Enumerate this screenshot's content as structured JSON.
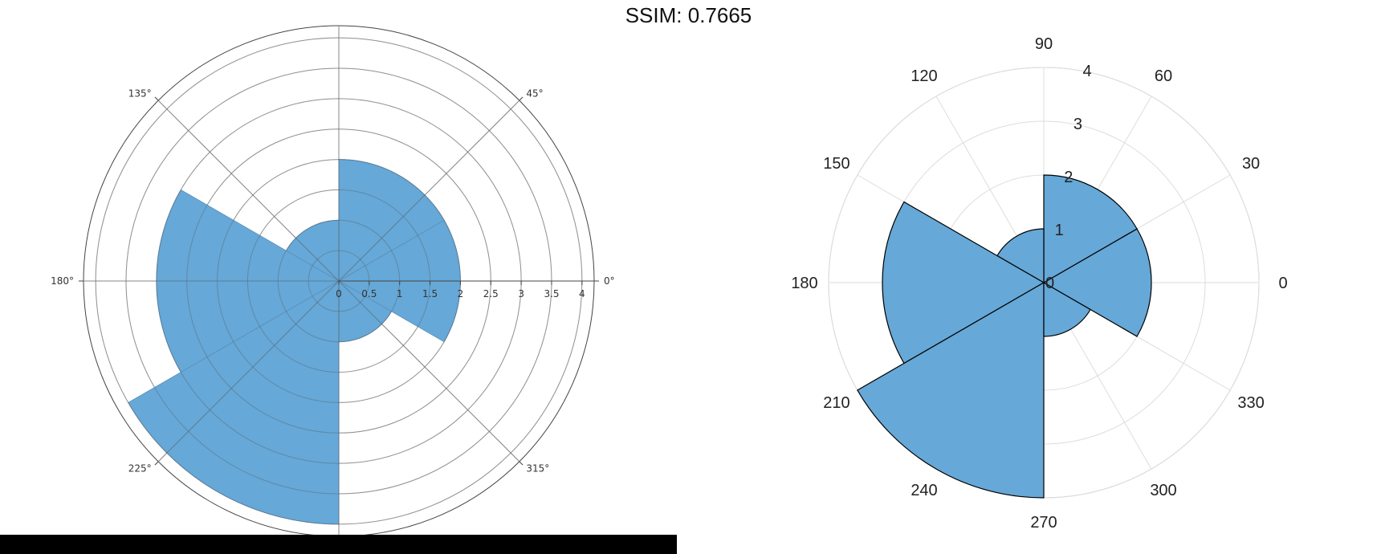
{
  "header": {
    "title": "SSIM: 0.7665"
  },
  "colors": {
    "bar_fill": "#66a8d7",
    "left_edge": "#5d8fb8",
    "right_edge": "#000000"
  },
  "chart_data": [
    {
      "type": "polar-bar",
      "theta_unit": "degrees",
      "bars": [
        {
          "theta": 0,
          "r": 2
        },
        {
          "theta": 60,
          "r": 2
        },
        {
          "theta": 120,
          "r": 1
        },
        {
          "theta": 180,
          "r": 3
        },
        {
          "theta": 240,
          "r": 4
        },
        {
          "theta": 300,
          "r": 1
        }
      ],
      "bar_width_deg": 60,
      "rlim": [
        0,
        4.2
      ],
      "radial_ticks": [
        0,
        0.5,
        1,
        1.5,
        2,
        2.5,
        3,
        3.5,
        4
      ],
      "radial_tick_labels": [
        "0",
        "0.5",
        "1",
        "1.5",
        "2",
        "2.5",
        "3",
        "3.5",
        "4"
      ],
      "angular_ticks": [
        0,
        45,
        135,
        180,
        225,
        315
      ],
      "angular_tick_labels": [
        "0°",
        "45°",
        "135°",
        "180°",
        "225°",
        "315°"
      ],
      "grid": true
    },
    {
      "type": "polar-bar",
      "theta_unit": "degrees",
      "bars": [
        {
          "theta": 0,
          "r": 2
        },
        {
          "theta": 60,
          "r": 2
        },
        {
          "theta": 120,
          "r": 1
        },
        {
          "theta": 180,
          "r": 3
        },
        {
          "theta": 240,
          "r": 4
        },
        {
          "theta": 300,
          "r": 1
        }
      ],
      "bar_width_deg": 60,
      "rlim": [
        0,
        4
      ],
      "radial_ticks": [
        0,
        1,
        2,
        3,
        4
      ],
      "radial_tick_labels": [
        "0",
        "1",
        "2",
        "3",
        "4"
      ],
      "angular_ticks": [
        0,
        30,
        60,
        90,
        120,
        150,
        180,
        210,
        240,
        270,
        300,
        330
      ],
      "angular_tick_labels": [
        "0",
        "30",
        "60",
        "90",
        "120",
        "150",
        "180",
        "210",
        "240",
        "270",
        "300",
        "330"
      ],
      "grid": true
    }
  ]
}
